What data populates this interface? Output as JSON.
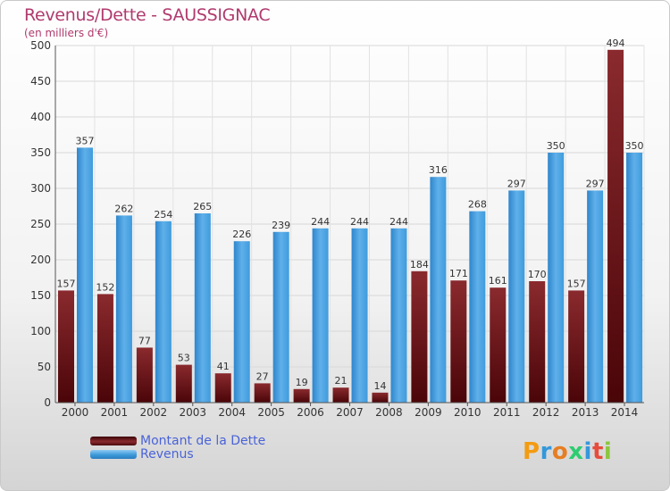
{
  "title": "Revenus/Dette - SAUSSIGNAC",
  "subtitle": "(en milliers d'€)",
  "chart_data": {
    "type": "bar",
    "categories": [
      "2000",
      "2001",
      "2002",
      "2003",
      "2004",
      "2005",
      "2006",
      "2007",
      "2008",
      "2009",
      "2010",
      "2011",
      "2012",
      "2013",
      "2014"
    ],
    "series": [
      {
        "name": "Montant de la Dette",
        "color": "#7a1b20",
        "values": [
          157,
          152,
          77,
          53,
          41,
          27,
          19,
          21,
          14,
          184,
          171,
          161,
          170,
          157,
          494
        ]
      },
      {
        "name": "Revenus",
        "color": "#3f9bdc",
        "values": [
          357,
          262,
          254,
          265,
          226,
          239,
          244,
          244,
          244,
          316,
          268,
          297,
          350,
          297,
          350
        ]
      }
    ],
    "ylim": [
      0,
      500
    ],
    "yticks": [
      0,
      50,
      100,
      150,
      200,
      250,
      300,
      350,
      400,
      450,
      500
    ],
    "grid": true,
    "legend": "bottom-left"
  },
  "legend": {
    "debt_label": "Montant de la Dette",
    "revenue_label": "Revenus"
  },
  "logo": {
    "letters": [
      "P",
      "r",
      "o",
      "x",
      "i",
      "t",
      "i"
    ],
    "colors": [
      "#f39c12",
      "#3498db",
      "#e67e22",
      "#2ecc71",
      "#3498db",
      "#e74c3c",
      "#8cc63f"
    ]
  }
}
